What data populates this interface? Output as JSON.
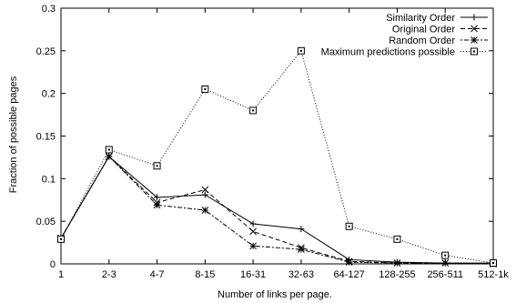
{
  "chart_data": {
    "type": "line",
    "xlabel": "Number of links per page.",
    "ylabel": "Fraction of possible pages",
    "categories": [
      "1",
      "2-3",
      "4-7",
      "8-15",
      "16-31",
      "32-63",
      "64-127",
      "128-255",
      "256-511",
      "512-1k"
    ],
    "ylim": [
      0,
      0.3
    ],
    "yticks": [
      "0",
      "0.05",
      "0.1",
      "0.15",
      "0.2",
      "0.25",
      "0.3"
    ],
    "grid": false,
    "legend_position": "top-right",
    "series": [
      {
        "name": "Similarity Order",
        "marker": "plus",
        "dash": "solid",
        "values": [
          0.03,
          0.126,
          0.078,
          0.081,
          0.047,
          0.041,
          0.005,
          0.002,
          0.001,
          0.001
        ]
      },
      {
        "name": "Original Order",
        "marker": "cross",
        "dash": "dashed",
        "values": [
          0.03,
          0.126,
          0.072,
          0.087,
          0.038,
          0.019,
          0.003,
          0.001,
          0.001,
          0.0
        ]
      },
      {
        "name": "Random Order",
        "marker": "star",
        "dash": "dotdash",
        "values": [
          0.03,
          0.126,
          0.069,
          0.063,
          0.021,
          0.017,
          0.002,
          0.001,
          0.001,
          0.0
        ]
      },
      {
        "name": "Maximum predictions possible",
        "marker": "square",
        "dash": "dotted",
        "values": [
          0.029,
          0.134,
          0.115,
          0.205,
          0.18,
          0.25,
          0.044,
          0.029,
          0.01,
          0.001
        ]
      }
    ]
  }
}
